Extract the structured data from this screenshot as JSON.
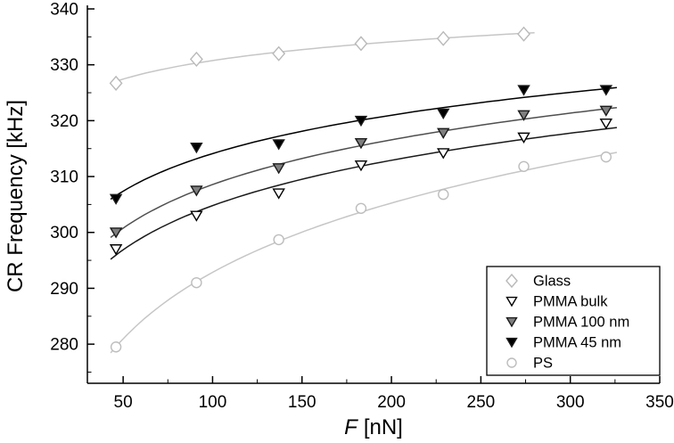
{
  "chart_data": {
    "type": "scatter",
    "title": "",
    "xlabel": "F [nN]",
    "xlabel_italic": "F",
    "xlabel_unit": "[nN]",
    "ylabel": "CR Frequency [kHz]",
    "xlim": [
      30,
      350
    ],
    "ylim": [
      273,
      340
    ],
    "xticks": [
      50,
      100,
      150,
      200,
      250,
      300,
      350
    ],
    "yticks": [
      280,
      290,
      300,
      310,
      320,
      330,
      340
    ],
    "grid": false,
    "legend_position": "bottom-right",
    "fit_style": "power-law trend curve per series",
    "series": [
      {
        "name": "Glass",
        "marker": "diamond-open",
        "color": "#b9b9b9",
        "line_color": "#c6c6c6",
        "x": [
          46,
          91,
          137,
          183,
          229,
          274
        ],
        "y": [
          326.7,
          331.0,
          332.0,
          333.8,
          334.7,
          335.5
        ]
      },
      {
        "name": "PMMA bulk",
        "marker": "triangle-down-open",
        "color": "#000000",
        "line_color": "#1a1a1a",
        "x": [
          46,
          91,
          137,
          183,
          229,
          274,
          320
        ],
        "y": [
          297.0,
          303.0,
          307.0,
          312.0,
          314.2,
          317.0,
          319.5
        ]
      },
      {
        "name": "PMMA 100 nm",
        "marker": "triangle-down-filled",
        "color": "#7f7f7f",
        "line_color": "#4f4f4f",
        "x": [
          46,
          91,
          137,
          183,
          229,
          274,
          320
        ],
        "y": [
          300.0,
          307.5,
          311.5,
          316.0,
          317.8,
          321.0,
          321.8
        ]
      },
      {
        "name": "PMMA 45 nm",
        "marker": "triangle-down-filled",
        "color": "#000000",
        "line_color": "#000000",
        "x": [
          46,
          91,
          137,
          183,
          229,
          274,
          320
        ],
        "y": [
          306.0,
          315.2,
          315.8,
          320.0,
          321.3,
          325.5,
          325.5
        ]
      },
      {
        "name": "PS",
        "marker": "circle-open",
        "color": "#bdbdbd",
        "line_color": "#c6c6c6",
        "x": [
          46,
          91,
          137,
          183,
          229,
          274,
          320
        ],
        "y": [
          279.5,
          291.0,
          298.7,
          304.3,
          306.8,
          311.8,
          313.5
        ]
      }
    ]
  }
}
